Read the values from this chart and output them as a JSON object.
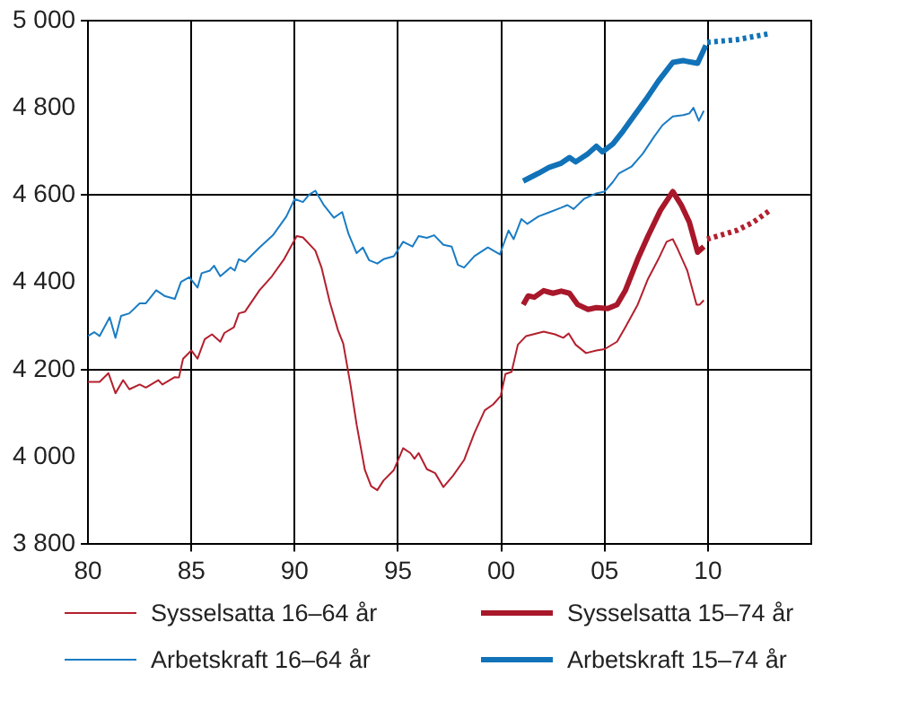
{
  "chart_data": {
    "type": "line",
    "xlim": [
      1980,
      2015
    ],
    "ylim": [
      3800,
      5000
    ],
    "xticks": [
      {
        "value": 1980,
        "label": "80"
      },
      {
        "value": 1985,
        "label": "85"
      },
      {
        "value": 1990,
        "label": "90"
      },
      {
        "value": 1995,
        "label": "95"
      },
      {
        "value": 2000,
        "label": "00"
      },
      {
        "value": 2005,
        "label": "05"
      },
      {
        "value": 2010,
        "label": "10"
      }
    ],
    "yticks": [
      {
        "value": 3800,
        "label": "3 800"
      },
      {
        "value": 4000,
        "label": "4 000"
      },
      {
        "value": 4200,
        "label": "4 200"
      },
      {
        "value": 4400,
        "label": "4 400"
      },
      {
        "value": 4600,
        "label": "4 600"
      },
      {
        "value": 4800,
        "label": "4 800"
      },
      {
        "value": 5000,
        "label": "5 000"
      }
    ],
    "grid": true,
    "legend": "bottom",
    "marker": "none",
    "series": [
      {
        "name": "Sysselsatta 16–64 år",
        "color": "#b3202e",
        "line_style": "solid",
        "x": [
          1980,
          1980.56,
          1980.99,
          1981.33,
          1981.7,
          1982,
          1982.5,
          1982.8,
          1983.4,
          1983.6,
          1984.2,
          1984.4,
          1984.6,
          1985,
          1985.3,
          1985.65,
          1986,
          1986.4,
          1986.6,
          1987.06,
          1987.3,
          1987.6,
          1988.3,
          1988.9,
          1989.5,
          1990.1,
          1990.4,
          1991,
          1991.3,
          1991.7,
          1992.1,
          1992.35,
          1992.7,
          1993,
          1993.4,
          1993.7,
          1994,
          1994.3,
          1994.8,
          1995.25,
          1995.6,
          1995.8,
          1996,
          1996.4,
          1996.8,
          1997.2,
          1997.66,
          1998.2,
          1998.7,
          1999.2,
          1999.6,
          1999.97,
          2000.2,
          2000.5,
          2000.8,
          2001.2,
          2002.05,
          2002.6,
          2003,
          2003.26,
          2003.6,
          2004.1,
          2004.6,
          2005,
          2005.6,
          2006,
          2006.6,
          2007.1,
          2007.6,
          2008,
          2008.3,
          2008.5,
          2009,
          2009.45,
          2009.6,
          2009.8
        ],
        "values": [
          4172,
          4172,
          4192,
          4146,
          4176,
          4155,
          4166,
          4159,
          4176,
          4166,
          4183,
          4182,
          4225,
          4244,
          4225,
          4270,
          4281,
          4264,
          4284,
          4297,
          4329,
          4333,
          4382,
          4414,
          4454,
          4506,
          4503,
          4473,
          4434,
          4355,
          4290,
          4260,
          4166,
          4074,
          3970,
          3933,
          3924,
          3946,
          3970,
          4020,
          4009,
          3996,
          4009,
          3972,
          3963,
          3931,
          3957,
          3993,
          4055,
          4107,
          4120,
          4140,
          4190,
          4195,
          4257,
          4277,
          4287,
          4281,
          4273,
          4283,
          4257,
          4238,
          4244,
          4247,
          4264,
          4297,
          4349,
          4408,
          4453,
          4493,
          4499,
          4480,
          4427,
          4349,
          4349,
          4359
        ]
      },
      {
        "name": "Arbetskraft 16–64 år",
        "color": "#1a7cc4",
        "line_style": "solid",
        "x": [
          1980,
          1980.3,
          1980.56,
          1981.05,
          1981.33,
          1981.6,
          1982,
          1982.5,
          1982.8,
          1983.3,
          1983.7,
          1984.2,
          1984.5,
          1984.9,
          1985.3,
          1985.5,
          1985.9,
          1986.1,
          1986.4,
          1986.9,
          1987.1,
          1987.3,
          1987.6,
          1988.3,
          1988.95,
          1989.6,
          1990,
          1990.4,
          1990.7,
          1991,
          1991.4,
          1991.9,
          1992.3,
          1992.6,
          1993,
          1993.3,
          1993.6,
          1994,
          1994.3,
          1994.8,
          1995.25,
          1995.7,
          1996,
          1996.4,
          1996.75,
          1997.2,
          1997.6,
          1997.9,
          1998.2,
          1998.7,
          1999.35,
          1999.93,
          2000.35,
          2000.6,
          2000.97,
          2001.26,
          2001.8,
          2002.3,
          2002.9,
          2003.2,
          2003.5,
          2004,
          2004.6,
          2005,
          2005.4,
          2005.7,
          2006.3,
          2006.85,
          2007.4,
          2007.8,
          2008.3,
          2008.8,
          2009.1,
          2009.3,
          2009.56,
          2009.8
        ],
        "values": [
          4277,
          4286,
          4277,
          4320,
          4273,
          4323,
          4329,
          4352,
          4352,
          4382,
          4369,
          4362,
          4401,
          4412,
          4388,
          4421,
          4427,
          4438,
          4414,
          4434,
          4427,
          4453,
          4447,
          4480,
          4508,
          4551,
          4591,
          4584,
          4601,
          4610,
          4578,
          4548,
          4561,
          4512,
          4467,
          4480,
          4451,
          4443,
          4453,
          4460,
          4493,
          4482,
          4506,
          4502,
          4508,
          4486,
          4482,
          4440,
          4434,
          4460,
          4480,
          4464,
          4519,
          4499,
          4545,
          4534,
          4551,
          4560,
          4571,
          4577,
          4568,
          4591,
          4604,
          4608,
          4630,
          4650,
          4665,
          4695,
          4734,
          4760,
          4780,
          4783,
          4787,
          4800,
          4770,
          4793
        ]
      },
      {
        "name": "Sysselsatta 15–74 år",
        "color": "#a8182a",
        "line_style": "solid",
        "x": [
          2001.06,
          2001.3,
          2001.6,
          2002.05,
          2002.5,
          2002.9,
          2003.3,
          2003.7,
          2004.2,
          2004.6,
          2005.15,
          2005.6,
          2006,
          2006.6,
          2007.1,
          2007.7,
          2008.3,
          2008.7,
          2009.1,
          2009.5,
          2009.8
        ],
        "values": [
          4349,
          4369,
          4366,
          4381,
          4375,
          4380,
          4375,
          4349,
          4338,
          4342,
          4340,
          4349,
          4381,
          4453,
          4506,
          4565,
          4608,
          4578,
          4538,
          4469,
          4482
        ]
      },
      {
        "name": "Arbetskraft 15–74 år",
        "color": "#1172b8",
        "line_style": "solid",
        "x": [
          2001.06,
          2001.8,
          2002.3,
          2002.9,
          2003.3,
          2003.6,
          2004.2,
          2004.6,
          2004.9,
          2005.4,
          2005.9,
          2006.4,
          2007,
          2007.6,
          2008.3,
          2008.8,
          2009.25,
          2009.5,
          2009.9
        ],
        "values": [
          4632,
          4650,
          4663,
          4673,
          4686,
          4676,
          4695,
          4712,
          4699,
          4717,
          4747,
          4780,
          4819,
          4861,
          4904,
          4908,
          4904,
          4902,
          4943
        ]
      },
      {
        "color": "#b3202e",
        "line_style": "dotted",
        "x": [
          2009.96,
          2011.4,
          2012.2,
          2013
        ],
        "values": [
          4499,
          4519,
          4538,
          4565
        ]
      },
      {
        "color": "#1172b8",
        "line_style": "dotted",
        "x": [
          2009.96,
          2011.4,
          2013
        ],
        "values": [
          4950,
          4956,
          4970
        ]
      }
    ]
  }
}
